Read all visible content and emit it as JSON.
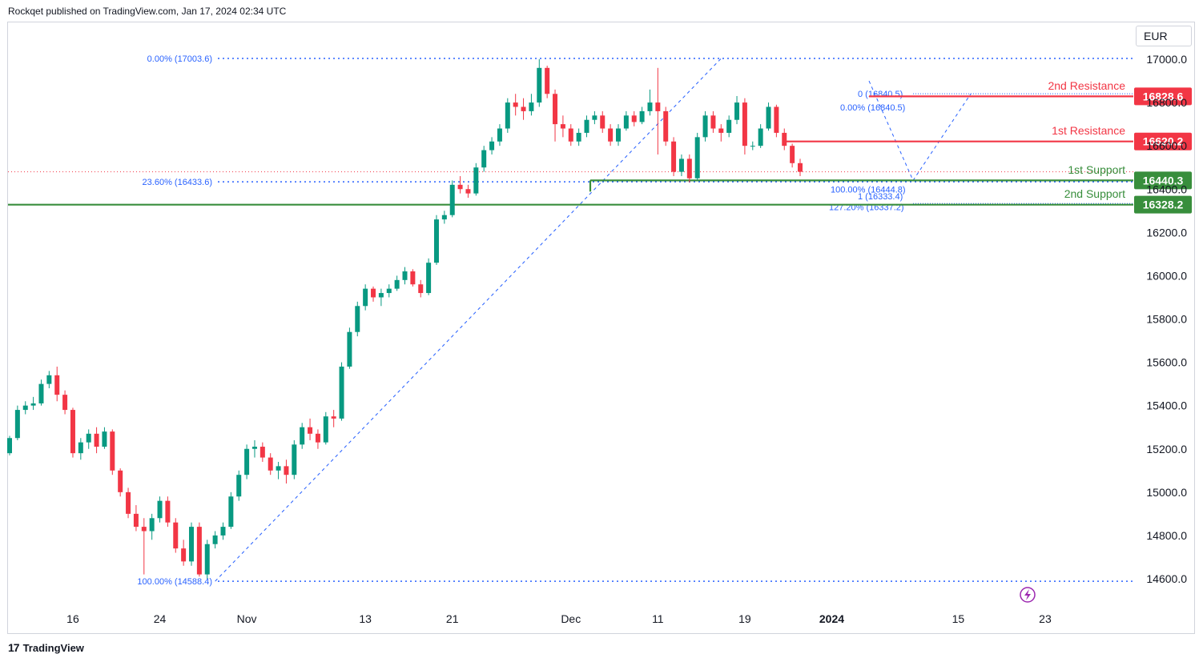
{
  "header": {
    "text": "Rockqet published on TradingView.com, Jan 17, 2024 02:34 UTC"
  },
  "currency": "EUR",
  "footer": {
    "logo": "17",
    "brand": "TradingView"
  },
  "chart_data": {
    "type": "candlestick",
    "ylim": [
      14540,
      17100
    ],
    "y_ticks": [
      14600,
      14800,
      15000,
      15200,
      15400,
      15600,
      15800,
      16000,
      16200,
      16400,
      16600,
      16800,
      17000
    ],
    "y_tick_labels": [
      "14600.0",
      "14800.0",
      "15000.0",
      "15200.0",
      "15400.0",
      "15600.0",
      "15800.0",
      "16000.0",
      "16200.0",
      "16400.0",
      "16600.0",
      "16800.0",
      "17000.0"
    ],
    "x_ticks": [
      {
        "label": "16",
        "bold": false,
        "bar": 8
      },
      {
        "label": "24",
        "bold": false,
        "bar": 19
      },
      {
        "label": "Nov",
        "bold": false,
        "bar": 30
      },
      {
        "label": "13",
        "bold": false,
        "bar": 45
      },
      {
        "label": "21",
        "bold": false,
        "bar": 56
      },
      {
        "label": "Dec",
        "bold": false,
        "bar": 71
      },
      {
        "label": "11",
        "bold": false,
        "bar": 82
      },
      {
        "label": "19",
        "bold": false,
        "bar": 93
      },
      {
        "label": "2024",
        "bold": true,
        "bar": 104
      },
      {
        "label": "15",
        "bold": false,
        "bar": 120
      },
      {
        "label": "23",
        "bold": false,
        "bar": 131
      }
    ],
    "levels": [
      {
        "name": "2nd Resistance",
        "value": 16828.6,
        "label": "16828.6",
        "color": "#f23645"
      },
      {
        "name": "1st Resistance",
        "value": 16620.2,
        "label": "16620.2",
        "color": "#f23645"
      },
      {
        "name": "1st Support",
        "value": 16440.3,
        "label": "16440.3",
        "color": "#388e3c"
      },
      {
        "name": "2nd Support",
        "value": 16328.2,
        "label": "16328.2",
        "color": "#388e3c"
      }
    ],
    "fib_main": [
      {
        "label": "0.00% (17003.6)",
        "value": 17003.6
      },
      {
        "label": "23.60% (16433.6)",
        "value": 16433.6
      },
      {
        "label": "100.00% (14588.4)",
        "value": 14588.4
      }
    ],
    "fib_small": [
      {
        "label": "0 (16840.5)"
      },
      {
        "label": "0.00% (16840.5)"
      },
      {
        "label": "100.00% (16444.8)"
      },
      {
        "label": "1 (16333.4)"
      },
      {
        "label": "127.20% (16337.2)"
      }
    ],
    "last_price": 16480,
    "candles": [
      [
        15180,
        15260,
        15170,
        15250
      ],
      [
        15250,
        15400,
        15240,
        15380
      ],
      [
        15380,
        15420,
        15360,
        15400
      ],
      [
        15400,
        15440,
        15380,
        15410
      ],
      [
        15410,
        15520,
        15400,
        15500
      ],
      [
        15500,
        15560,
        15480,
        15540
      ],
      [
        15540,
        15580,
        15420,
        15450
      ],
      [
        15450,
        15470,
        15360,
        15380
      ],
      [
        15380,
        15390,
        15160,
        15180
      ],
      [
        15180,
        15250,
        15150,
        15230
      ],
      [
        15230,
        15290,
        15200,
        15270
      ],
      [
        15270,
        15300,
        15180,
        15210
      ],
      [
        15210,
        15300,
        15200,
        15280
      ],
      [
        15280,
        15290,
        15080,
        15100
      ],
      [
        15100,
        15110,
        14980,
        15000
      ],
      [
        15000,
        15020,
        14880,
        14900
      ],
      [
        14900,
        14940,
        14820,
        14840
      ],
      [
        14840,
        14880,
        14620,
        14820
      ],
      [
        14820,
        14900,
        14780,
        14880
      ],
      [
        14880,
        14980,
        14860,
        14960
      ],
      [
        14960,
        14980,
        14840,
        14860
      ],
      [
        14860,
        14880,
        14720,
        14740
      ],
      [
        14740,
        14780,
        14660,
        14680
      ],
      [
        14680,
        14860,
        14660,
        14840
      ],
      [
        14840,
        14860,
        14610,
        14620
      ],
      [
        14620,
        14780,
        14600,
        14760
      ],
      [
        14760,
        14820,
        14740,
        14800
      ],
      [
        14800,
        14860,
        14780,
        14840
      ],
      [
        14840,
        15000,
        14830,
        14980
      ],
      [
        14980,
        15100,
        14960,
        15080
      ],
      [
        15080,
        15220,
        15060,
        15200
      ],
      [
        15200,
        15240,
        15160,
        15210
      ],
      [
        15210,
        15230,
        15140,
        15160
      ],
      [
        15160,
        15180,
        15080,
        15100
      ],
      [
        15100,
        15140,
        15060,
        15120
      ],
      [
        15120,
        15150,
        15040,
        15080
      ],
      [
        15080,
        15240,
        15060,
        15220
      ],
      [
        15220,
        15320,
        15200,
        15300
      ],
      [
        15300,
        15340,
        15240,
        15270
      ],
      [
        15270,
        15290,
        15200,
        15230
      ],
      [
        15230,
        15370,
        15220,
        15350
      ],
      [
        15350,
        15380,
        15300,
        15340
      ],
      [
        15340,
        15600,
        15330,
        15580
      ],
      [
        15580,
        15760,
        15570,
        15740
      ],
      [
        15740,
        15880,
        15720,
        15860
      ],
      [
        15860,
        15960,
        15840,
        15940
      ],
      [
        15940,
        15950,
        15880,
        15900
      ],
      [
        15900,
        15940,
        15860,
        15920
      ],
      [
        15920,
        15960,
        15900,
        15940
      ],
      [
        15940,
        16000,
        15930,
        15980
      ],
      [
        15980,
        16040,
        15960,
        16020
      ],
      [
        16020,
        16030,
        15950,
        15960
      ],
      [
        15960,
        15980,
        15900,
        15920
      ],
      [
        15920,
        16080,
        15910,
        16060
      ],
      [
        16060,
        16280,
        16050,
        16260
      ],
      [
        16260,
        16300,
        16240,
        16280
      ],
      [
        16280,
        16440,
        16270,
        16420
      ],
      [
        16420,
        16460,
        16380,
        16400
      ],
      [
        16400,
        16420,
        16360,
        16380
      ],
      [
        16380,
        16520,
        16370,
        16500
      ],
      [
        16500,
        16600,
        16480,
        16580
      ],
      [
        16580,
        16640,
        16560,
        16620
      ],
      [
        16620,
        16700,
        16600,
        16680
      ],
      [
        16680,
        16820,
        16660,
        16800
      ],
      [
        16800,
        16840,
        16740,
        16780
      ],
      [
        16780,
        16820,
        16720,
        16760
      ],
      [
        16760,
        16840,
        16740,
        16800
      ],
      [
        16800,
        17000,
        16780,
        16960
      ],
      [
        16960,
        16970,
        16820,
        16840
      ],
      [
        16840,
        16860,
        16620,
        16700
      ],
      [
        16700,
        16740,
        16640,
        16680
      ],
      [
        16680,
        16700,
        16600,
        16620
      ],
      [
        16620,
        16680,
        16600,
        16660
      ],
      [
        16660,
        16740,
        16640,
        16720
      ],
      [
        16720,
        16760,
        16700,
        16740
      ],
      [
        16740,
        16760,
        16660,
        16680
      ],
      [
        16680,
        16700,
        16600,
        16620
      ],
      [
        16620,
        16700,
        16600,
        16680
      ],
      [
        16680,
        16760,
        16670,
        16740
      ],
      [
        16740,
        16760,
        16690,
        16710
      ],
      [
        16710,
        16780,
        16700,
        16760
      ],
      [
        16760,
        16860,
        16740,
        16800
      ],
      [
        16800,
        16960,
        16560,
        16760
      ],
      [
        16760,
        16780,
        16600,
        16620
      ],
      [
        16620,
        16640,
        16460,
        16480
      ],
      [
        16480,
        16560,
        16460,
        16540
      ],
      [
        16540,
        16560,
        16430,
        16450
      ],
      [
        16450,
        16660,
        16440,
        16640
      ],
      [
        16640,
        16760,
        16620,
        16740
      ],
      [
        16740,
        16760,
        16660,
        16680
      ],
      [
        16680,
        16700,
        16620,
        16660
      ],
      [
        16660,
        16740,
        16640,
        16720
      ],
      [
        16720,
        16830,
        16700,
        16800
      ],
      [
        16800,
        16820,
        16560,
        16600
      ],
      [
        16600,
        16620,
        16580,
        16600
      ],
      [
        16600,
        16700,
        16590,
        16680
      ],
      [
        16680,
        16800,
        16670,
        16780
      ],
      [
        16780,
        16790,
        16640,
        16660
      ],
      [
        16660,
        16680,
        16580,
        16600
      ],
      [
        16600,
        16610,
        16500,
        16520
      ],
      [
        16520,
        16540,
        16460,
        16480
      ]
    ]
  }
}
